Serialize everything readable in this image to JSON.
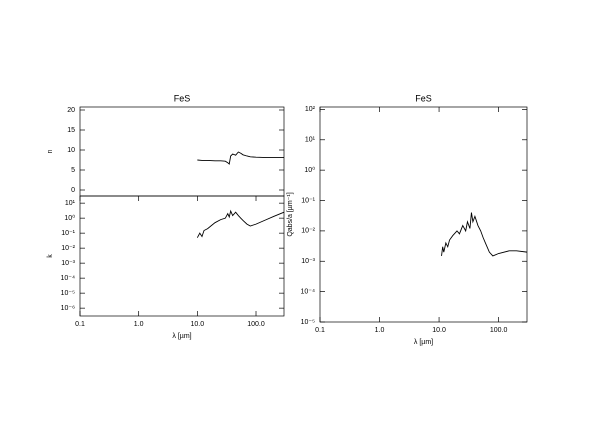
{
  "chart_data": [
    {
      "type": "line",
      "title": "FeS",
      "ylabel": "n",
      "xlog": true,
      "ylog": false,
      "x": [
        10,
        12,
        15,
        20,
        25,
        30,
        33,
        35,
        37,
        40,
        45,
        50,
        55,
        60,
        70,
        80,
        100,
        150,
        200,
        300
      ],
      "series": [
        {
          "color": "#000000",
          "values": [
            7.5,
            7.4,
            7.4,
            7.3,
            7.3,
            7.2,
            6.8,
            6.5,
            8.5,
            9.0,
            8.7,
            9.5,
            9.2,
            8.8,
            8.5,
            8.3,
            8.2,
            8.1,
            8.1,
            8.1
          ]
        }
      ],
      "xlim": [
        0.1,
        300
      ],
      "ylim": [
        -1.5,
        20.75
      ],
      "yticks": [
        0,
        5,
        10,
        15,
        20
      ]
    },
    {
      "type": "line",
      "ylabel": "k",
      "xlabel": "λ [µm]",
      "xlog": true,
      "ylog": true,
      "x": [
        10,
        11,
        12,
        13,
        15,
        17,
        20,
        25,
        30,
        33,
        35,
        37,
        40,
        45,
        50,
        55,
        60,
        70,
        80,
        100,
        150,
        200,
        300
      ],
      "series": [
        {
          "color": "#000000",
          "values": [
            0.05,
            0.1,
            0.06,
            0.15,
            0.2,
            0.3,
            0.5,
            0.8,
            1.0,
            2.0,
            1.2,
            3.0,
            1.5,
            2.5,
            1.5,
            1.0,
            0.7,
            0.4,
            0.3,
            0.4,
            0.8,
            1.3,
            2.5
          ]
        }
      ],
      "xlim": [
        0.1,
        300
      ],
      "ylim": [
        3e-07,
        30
      ],
      "xticks": [
        0.1,
        {
          "value": 1,
          "label": "1.0"
        },
        {
          "value": 10,
          "label": "10.0"
        },
        {
          "value": 100,
          "label": "100.0"
        }
      ],
      "yticks": [
        {
          "value": 10,
          "label": "10¹"
        },
        {
          "value": 1,
          "label": "10⁰"
        },
        {
          "value": 0.1,
          "label": "10⁻¹"
        },
        {
          "value": 0.01,
          "label": "10⁻²"
        },
        {
          "value": 0.001,
          "label": "10⁻³"
        },
        {
          "value": 0.0001,
          "label": "10⁻⁴"
        },
        {
          "value": 1e-05,
          "label": "10⁻⁵"
        },
        {
          "value": 1e-06,
          "label": "10⁻⁶"
        }
      ]
    },
    {
      "type": "line",
      "title": "FeS",
      "ylabel": "Qabs/a [µm⁻¹]",
      "xlabel": "λ [µm]",
      "xlog": true,
      "ylog": true,
      "x": [
        11,
        11.5,
        12,
        13,
        14,
        15,
        17,
        20,
        22,
        25,
        28,
        30,
        33,
        35,
        37,
        40,
        45,
        50,
        55,
        60,
        70,
        80,
        100,
        150,
        200,
        300
      ],
      "series": [
        {
          "color": "#000000",
          "values": [
            0.0015,
            0.003,
            0.002,
            0.004,
            0.003,
            0.005,
            0.007,
            0.01,
            0.008,
            0.015,
            0.01,
            0.02,
            0.012,
            0.04,
            0.02,
            0.03,
            0.015,
            0.01,
            0.006,
            0.004,
            0.002,
            0.0015,
            0.0018,
            0.0022,
            0.0022,
            0.002
          ]
        }
      ],
      "xlim": [
        0.1,
        300
      ],
      "ylim": [
        1e-05,
        120
      ],
      "xticks": [
        0.1,
        {
          "value": 1,
          "label": "1.0"
        },
        {
          "value": 10,
          "label": "10.0"
        },
        {
          "value": 100,
          "label": "100.0"
        }
      ],
      "yticks": [
        {
          "value": 100,
          "label": "10²"
        },
        {
          "value": 10,
          "label": "10¹"
        },
        {
          "value": 1,
          "label": "10⁰"
        },
        {
          "value": 0.1,
          "label": "10⁻¹"
        },
        {
          "value": 0.01,
          "label": "10⁻²"
        },
        {
          "value": 0.001,
          "label": "10⁻³"
        },
        {
          "value": 0.0001,
          "label": "10⁻⁴"
        },
        {
          "value": 1e-05,
          "label": "10⁻⁵"
        }
      ]
    }
  ]
}
